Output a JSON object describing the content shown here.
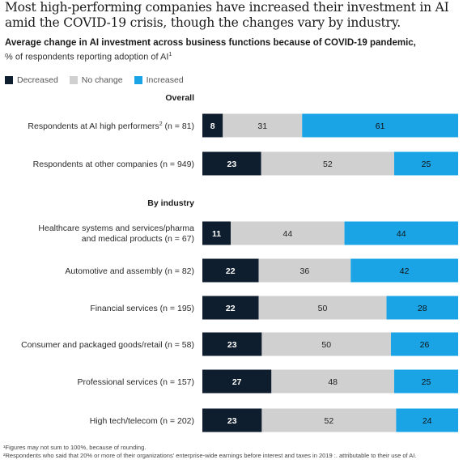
{
  "title": "Most high-performing companies have increased their investment in AI amid the COVID-19 crisis, though the changes vary by industry.",
  "subtitle": "Average change in AI investment across business functions because of COVID-19 pandemic,",
  "subtitle_note": "% of respondents reporting adoption of AI",
  "subtitle_sup": "1",
  "colors": {
    "decreased": "#0f1e2e",
    "no_change": "#d0d0d0",
    "increased": "#1aa4e6"
  },
  "legend": [
    {
      "label": "Decreased",
      "color": "#0f1e2e"
    },
    {
      "label": "No change",
      "color": "#d0d0d0"
    },
    {
      "label": "Increased",
      "color": "#1aa4e6"
    }
  ],
  "chart_data": {
    "type": "bar",
    "stacked": true,
    "orientation": "horizontal",
    "series_names": [
      "Decreased",
      "No change",
      "Increased"
    ],
    "groups": [
      {
        "heading": "Overall",
        "rows": [
          {
            "label": "Respondents at AI high performers",
            "label_sup": "2",
            "label_suffix": " (n = 81)",
            "values": [
              8,
              31,
              61
            ]
          },
          {
            "label": "Respondents at other companies (n = 949)",
            "values": [
              23,
              52,
              25
            ]
          }
        ]
      },
      {
        "heading": "By industry",
        "rows": [
          {
            "label": "Healthcare systems and services/pharma",
            "label_line2": "and medical products (n = 67)",
            "values": [
              11,
              44,
              44
            ]
          },
          {
            "label": "Automotive and assembly (n = 82)",
            "values": [
              22,
              36,
              42
            ]
          },
          {
            "label": "Financial services (n = 195)",
            "values": [
              22,
              50,
              28
            ]
          },
          {
            "label": "Consumer and packaged goods/retail (n = 58)",
            "values": [
              23,
              50,
              26
            ]
          },
          {
            "label": "Professional services (n = 157)",
            "values": [
              27,
              48,
              25
            ]
          },
          {
            "label": "High tech/telecom (n = 202)",
            "values": [
              23,
              52,
              24
            ]
          }
        ]
      }
    ]
  },
  "footnotes": [
    "¹Figures may not sum to 100%, because of rounding.",
    "²Respondents who said that 20% or more of their organizations' enterprise-wide earnings before interest and taxes in 2019 :. attributable to their use of AI."
  ]
}
